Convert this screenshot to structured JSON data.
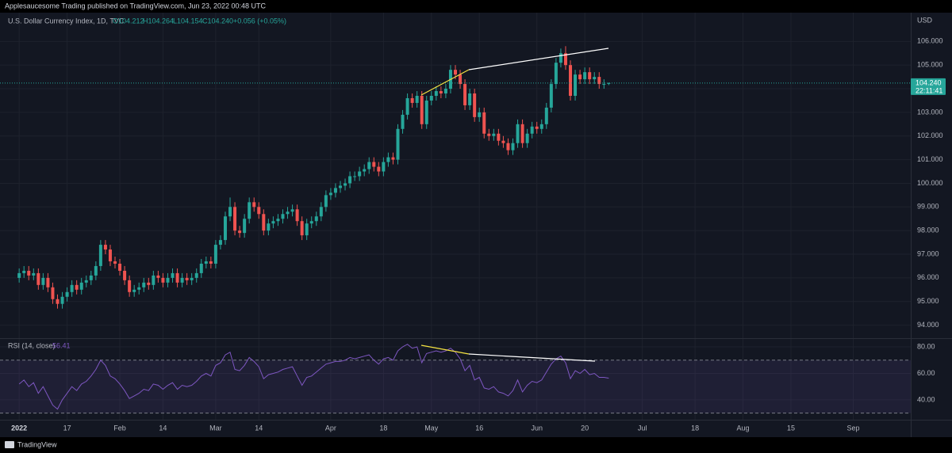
{
  "header": "Applesaucesome Trading published on TradingView.com, Jun 23, 2022 00:48 UTC",
  "footer": "TradingView",
  "chart_data": [
    {
      "type": "candlestick",
      "title": "U.S. Dollar Currency Index, 1D, TVC",
      "legend_values": [
        "O104.212",
        "H104.264",
        "L104.154",
        "C104.240",
        "+0.056 (+0.05%)"
      ],
      "currency": "USD",
      "last_price_label": "104.240",
      "countdown": "22:11:41",
      "up_color": "#26a69a",
      "down_color": "#ef5350",
      "open": [
        96.0,
        96.2,
        96.3,
        96.1,
        96.2,
        95.7,
        96.0,
        95.6,
        95.1,
        94.9,
        95.2,
        95.4,
        95.7,
        95.5,
        95.8,
        95.9,
        96.1,
        96.5,
        97.4,
        97.2,
        96.7,
        96.6,
        96.3,
        95.9,
        95.4,
        95.5,
        95.6,
        95.8,
        95.7,
        96.1,
        96.0,
        95.8,
        96.0,
        96.2,
        95.8,
        96.0,
        95.9,
        96.0,
        96.2,
        96.6,
        96.7,
        96.6,
        97.4,
        97.6,
        98.6,
        99.0,
        98.0,
        97.9,
        98.5,
        99.2,
        99.0,
        98.7,
        98.0,
        98.3,
        98.4,
        98.5,
        98.7,
        98.8,
        98.9,
        98.4,
        97.8,
        98.3,
        98.4,
        98.6,
        99.0,
        99.5,
        99.6,
        99.8,
        99.9,
        100.0,
        100.3,
        100.3,
        100.5,
        100.6,
        100.9,
        100.7,
        100.5,
        100.9,
        101.1,
        101.0,
        102.3,
        102.9,
        103.6,
        103.4,
        103.7,
        102.5,
        103.5,
        103.7,
        103.9,
        103.8,
        104.0,
        104.8,
        104.6,
        104.2,
        103.3,
        103.8,
        102.8,
        103.0,
        102.1,
        102.0,
        102.1,
        101.8,
        101.7,
        101.4,
        101.7,
        102.5,
        101.7,
        102.1,
        102.4,
        102.3,
        102.5,
        103.2,
        104.2,
        105.1,
        105.5,
        105.0,
        103.7,
        104.6,
        104.4,
        104.7,
        104.4,
        104.5,
        104.2,
        104.212
      ],
      "high": [
        96.4,
        96.5,
        96.5,
        96.4,
        96.4,
        96.2,
        96.2,
        95.8,
        95.3,
        95.4,
        95.6,
        95.9,
        95.9,
        96.0,
        96.1,
        96.3,
        96.7,
        97.6,
        97.6,
        97.4,
        96.9,
        96.8,
        96.5,
        96.1,
        95.7,
        95.8,
        96.0,
        96.0,
        96.3,
        96.3,
        96.2,
        96.2,
        96.4,
        96.4,
        96.2,
        96.2,
        96.2,
        96.4,
        96.8,
        96.9,
        96.9,
        97.6,
        97.8,
        98.8,
        99.4,
        99.2,
        98.2,
        98.7,
        99.4,
        99.4,
        99.2,
        98.9,
        98.5,
        98.6,
        98.7,
        98.9,
        99.0,
        99.1,
        99.1,
        98.6,
        98.5,
        98.6,
        98.8,
        99.2,
        99.7,
        99.8,
        100.0,
        100.1,
        100.2,
        100.5,
        100.5,
        100.7,
        100.8,
        101.1,
        101.1,
        100.9,
        101.1,
        101.3,
        101.3,
        102.5,
        103.1,
        103.8,
        103.8,
        103.9,
        103.9,
        103.7,
        103.9,
        104.1,
        104.1,
        104.2,
        105.0,
        105.0,
        104.8,
        104.4,
        104.0,
        104.0,
        103.2,
        103.2,
        102.3,
        102.3,
        102.3,
        102.0,
        101.9,
        101.9,
        102.7,
        102.7,
        102.3,
        102.6,
        102.6,
        102.7,
        103.4,
        104.4,
        105.3,
        105.7,
        105.8,
        105.2,
        104.8,
        104.8,
        104.9,
        104.9,
        104.7,
        104.7,
        104.4,
        104.264
      ],
      "low": [
        95.8,
        96.0,
        95.9,
        95.9,
        95.5,
        95.5,
        95.4,
        94.9,
        94.7,
        94.7,
        95.0,
        95.2,
        95.3,
        95.3,
        95.6,
        95.7,
        95.9,
        96.3,
        97.0,
        96.5,
        96.4,
        96.1,
        95.7,
        95.2,
        95.2,
        95.3,
        95.4,
        95.5,
        95.5,
        95.8,
        95.6,
        95.6,
        95.8,
        95.6,
        95.6,
        95.7,
        95.7,
        95.8,
        96.0,
        96.4,
        96.4,
        96.4,
        97.2,
        97.4,
        98.4,
        97.8,
        97.7,
        97.7,
        98.3,
        98.8,
        98.5,
        97.8,
        97.8,
        98.1,
        98.2,
        98.3,
        98.5,
        98.6,
        98.2,
        97.6,
        97.6,
        98.1,
        98.2,
        98.4,
        98.8,
        99.3,
        99.4,
        99.6,
        99.7,
        99.8,
        100.1,
        100.1,
        100.3,
        100.4,
        100.5,
        100.3,
        100.3,
        100.7,
        100.8,
        100.8,
        102.1,
        102.7,
        103.2,
        103.2,
        102.3,
        102.3,
        103.3,
        103.5,
        103.6,
        103.6,
        103.8,
        104.4,
        104.0,
        103.1,
        103.1,
        102.6,
        102.6,
        101.9,
        101.8,
        101.8,
        101.6,
        101.5,
        101.2,
        101.2,
        101.5,
        101.5,
        101.5,
        101.9,
        102.1,
        102.1,
        102.3,
        103.0,
        104.0,
        104.9,
        104.8,
        103.5,
        103.5,
        104.2,
        104.2,
        104.2,
        104.2,
        104.0,
        104.0,
        104.154
      ],
      "close": [
        96.2,
        96.3,
        96.1,
        96.2,
        95.7,
        96.0,
        95.6,
        95.1,
        94.9,
        95.2,
        95.4,
        95.7,
        95.5,
        95.8,
        95.9,
        96.1,
        96.5,
        97.4,
        97.2,
        96.7,
        96.6,
        96.3,
        95.9,
        95.4,
        95.5,
        95.6,
        95.8,
        95.7,
        96.1,
        96.0,
        95.8,
        96.0,
        96.2,
        95.8,
        96.0,
        95.9,
        96.0,
        96.2,
        96.6,
        96.7,
        96.6,
        97.4,
        97.6,
        98.6,
        99.0,
        98.0,
        97.9,
        98.5,
        99.2,
        99.0,
        98.7,
        98.0,
        98.3,
        98.4,
        98.5,
        98.7,
        98.8,
        98.9,
        98.4,
        97.8,
        98.3,
        98.4,
        98.6,
        99.0,
        99.5,
        99.6,
        99.8,
        99.9,
        100.0,
        100.3,
        100.3,
        100.5,
        100.6,
        100.9,
        100.7,
        100.5,
        100.9,
        101.1,
        101.0,
        102.3,
        102.9,
        103.6,
        103.4,
        103.7,
        102.5,
        103.5,
        103.7,
        103.9,
        103.8,
        104.0,
        104.8,
        104.6,
        104.2,
        103.3,
        103.8,
        102.8,
        103.0,
        102.1,
        102.0,
        102.1,
        101.8,
        101.7,
        101.4,
        101.7,
        102.5,
        101.7,
        102.1,
        102.4,
        102.3,
        102.5,
        103.2,
        104.2,
        105.1,
        105.5,
        105.0,
        103.7,
        104.6,
        104.4,
        104.7,
        104.4,
        104.5,
        104.2,
        104.2,
        104.24
      ],
      "ylim": [
        93.45,
        107.15
      ],
      "yticks": [
        {
          "value": 94,
          "label": "94.000"
        },
        {
          "value": 95,
          "label": "95.000"
        },
        {
          "value": 96,
          "label": "96.000"
        },
        {
          "value": 97,
          "label": "97.000"
        },
        {
          "value": 98,
          "label": "98.000"
        },
        {
          "value": 99,
          "label": "99.000"
        },
        {
          "value": 100,
          "label": "100.000"
        },
        {
          "value": 101,
          "label": "101.000"
        },
        {
          "value": 102,
          "label": "102.000"
        },
        {
          "value": 103,
          "label": "103.000"
        },
        {
          "value": 104,
          "label": "104.000"
        },
        {
          "value": 105,
          "label": "105.000"
        },
        {
          "value": 106,
          "label": "106.000"
        }
      ],
      "xlim": [
        -4,
        186
      ],
      "xticks": [
        {
          "value": 0,
          "label": "2022"
        },
        {
          "value": 10,
          "label": "17"
        },
        {
          "value": 21,
          "label": "Feb"
        },
        {
          "value": 30,
          "label": "14"
        },
        {
          "value": 41,
          "label": "Mar"
        },
        {
          "value": 50,
          "label": "14"
        },
        {
          "value": 65,
          "label": "Apr"
        },
        {
          "value": 76,
          "label": "18"
        },
        {
          "value": 86,
          "label": "May"
        },
        {
          "value": 96,
          "label": "16"
        },
        {
          "value": 108,
          "label": "Jun"
        },
        {
          "value": 118,
          "label": "20"
        },
        {
          "value": 130,
          "label": "Jul"
        },
        {
          "value": 141,
          "label": "18"
        },
        {
          "value": 151,
          "label": "Aug"
        },
        {
          "value": 161,
          "label": "15"
        },
        {
          "value": 174,
          "label": "Sep"
        }
      ],
      "grid": true
    },
    {
      "type": "line",
      "title": "RSI (14, close)",
      "value_label": "56.41",
      "color": "#7e57c2",
      "values": [
        52,
        55,
        50,
        53,
        45,
        50,
        43,
        36,
        33,
        40,
        45,
        50,
        47,
        52,
        54,
        58,
        63,
        70,
        66,
        58,
        56,
        52,
        47,
        41,
        43,
        45,
        48,
        47,
        52,
        51,
        48,
        51,
        53,
        48,
        51,
        50,
        51,
        54,
        58,
        60,
        58,
        66,
        68,
        74,
        76,
        63,
        62,
        66,
        72,
        69,
        65,
        56,
        59,
        60,
        61,
        63,
        64,
        65,
        58,
        51,
        57,
        58,
        61,
        64,
        67,
        68,
        69,
        69,
        70,
        72,
        71,
        72,
        73,
        74,
        70,
        67,
        71,
        72,
        70,
        77,
        80,
        82,
        79,
        80,
        68,
        75,
        76,
        77,
        76,
        77,
        79,
        76,
        71,
        62,
        66,
        55,
        57,
        49,
        48,
        50,
        46,
        45,
        43,
        47,
        55,
        46,
        51,
        54,
        53,
        55,
        61,
        67,
        71,
        73,
        68,
        56,
        62,
        60,
        63,
        59,
        60,
        57,
        57,
        56.41
      ],
      "bands": [
        30,
        70
      ],
      "ylim": [
        25,
        86
      ],
      "yticks": [
        {
          "value": 40,
          "label": "40.00"
        },
        {
          "value": 60,
          "label": "60.00"
        },
        {
          "value": 80,
          "label": "80.00"
        }
      ],
      "xlim": [
        -4,
        186
      ],
      "grid": true
    }
  ]
}
